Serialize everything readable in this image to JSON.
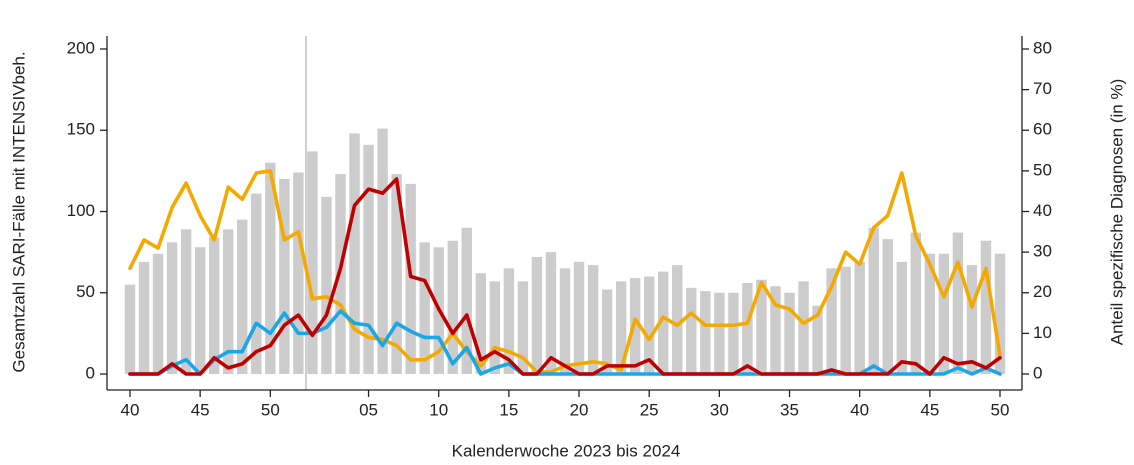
{
  "chart_data": {
    "type": "bar",
    "x_label": "Kalenderwoche 2023 bis 2024",
    "y_label": "Gesamtzahl SARI-Fälle mit INTENSIVbeh.",
    "y2_label": "Anteil spezifische Diagnosen (in %)",
    "categories": [
      "40",
      null,
      null,
      null,
      null,
      "45",
      null,
      null,
      null,
      null,
      "50",
      null,
      null,
      null,
      null,
      null,
      null,
      "05",
      null,
      null,
      null,
      null,
      "10",
      null,
      null,
      null,
      null,
      "15",
      null,
      null,
      null,
      null,
      "20",
      null,
      null,
      null,
      null,
      "25",
      null,
      null,
      null,
      null,
      "30",
      null,
      null,
      null,
      null,
      "35",
      null,
      null,
      null,
      null,
      "40",
      null,
      null,
      null,
      null,
      "45",
      null,
      null,
      null,
      null,
      "50"
    ],
    "ylim": [
      0,
      200
    ],
    "yticks": [
      0,
      50,
      100,
      150,
      200
    ],
    "y2lim": [
      0,
      80
    ],
    "y2ticks": [
      0,
      10,
      20,
      30,
      40,
      50,
      60,
      70,
      80
    ],
    "series": [
      {
        "type": "bar",
        "color": "#cccccc",
        "values": [
          55,
          69,
          74,
          81,
          89,
          78,
          84,
          89,
          95,
          111,
          130,
          120,
          124,
          137,
          109,
          123,
          148,
          141,
          151,
          123,
          117,
          81,
          78,
          82,
          90,
          62,
          57,
          65,
          57,
          72,
          75,
          65,
          69,
          67,
          52,
          57,
          59,
          60,
          63,
          67,
          53,
          51,
          50,
          50,
          56,
          58,
          54,
          50,
          57,
          42,
          65,
          66,
          69,
          90,
          83,
          69,
          87,
          74,
          74,
          87,
          67,
          82,
          74
        ]
      },
      {
        "type": "line",
        "axis": "y2",
        "color": "#f5a800",
        "values": [
          26,
          33,
          31,
          41,
          47,
          39,
          33,
          46,
          43,
          49.5,
          50,
          33,
          35,
          18.5,
          19,
          17,
          11,
          9,
          8.5,
          7,
          3.5,
          3.5,
          5.5,
          10,
          5.5,
          2,
          6.5,
          5.5,
          4,
          0.5,
          0.5,
          2,
          2.5,
          3,
          2.5,
          1,
          13.5,
          8.5,
          14,
          12,
          15,
          12,
          12,
          12,
          12.5,
          22.5,
          17,
          16,
          12.5,
          14.5,
          21.5,
          30,
          27,
          36,
          39,
          49.5,
          34,
          27,
          19,
          27.5,
          16.5,
          26,
          4.5
        ]
      },
      {
        "type": "line",
        "axis": "y2",
        "color": "#1aa7e8",
        "values": [
          0,
          0,
          0,
          2,
          3.5,
          0,
          3.5,
          5.5,
          5.5,
          12.5,
          10,
          15,
          10,
          10,
          11.5,
          15.5,
          12.5,
          12,
          7,
          12.5,
          10.5,
          9,
          9,
          2.5,
          6.5,
          0,
          1.5,
          2.5,
          0,
          0,
          0,
          0,
          0,
          0,
          0,
          0,
          0,
          0,
          0,
          0,
          0,
          0,
          0,
          0,
          0,
          0,
          0,
          0,
          0,
          0,
          0,
          0,
          0,
          2,
          0,
          0,
          0,
          0,
          0,
          1.5,
          0,
          1.5,
          0
        ]
      },
      {
        "type": "line",
        "axis": "y2",
        "color": "#c00000",
        "values": [
          0,
          0,
          0,
          2.5,
          0,
          0,
          4,
          1.5,
          2.5,
          5.5,
          7,
          12,
          14.5,
          9.5,
          14.5,
          26,
          41.5,
          45.5,
          44.5,
          48,
          24,
          23,
          16,
          10,
          14.5,
          3.5,
          5.5,
          3.5,
          0,
          0,
          4,
          2,
          0,
          0,
          2,
          2,
          2,
          3.5,
          0,
          0,
          0,
          0,
          0,
          0,
          2,
          0,
          0,
          0,
          0,
          0,
          1,
          0,
          0,
          0,
          0,
          3,
          2.5,
          0,
          4,
          2.5,
          3,
          1.5,
          4
        ]
      }
    ]
  }
}
